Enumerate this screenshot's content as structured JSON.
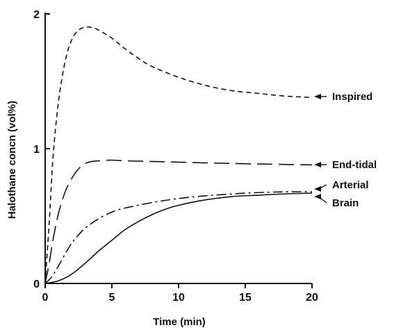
{
  "chart_data": {
    "type": "line",
    "title": "",
    "xlabel": "Time (min)",
    "ylabel": "Halothane concn (vol%)",
    "xlim": [
      0,
      20
    ],
    "ylim": [
      0,
      2
    ],
    "x_ticks": [
      "0",
      "5",
      "10",
      "15",
      "20"
    ],
    "y_ticks": [
      "0",
      "1",
      "2"
    ],
    "grid": false,
    "series": [
      {
        "name": "Inspired",
        "style": "short-dash",
        "x": [
          0,
          0.3,
          0.6,
          1,
          1.5,
          2,
          2.5,
          3,
          3.5,
          4,
          5,
          6,
          7,
          8,
          10,
          12,
          14,
          16,
          18,
          20
        ],
        "values": [
          0,
          0.45,
          0.95,
          1.35,
          1.65,
          1.81,
          1.88,
          1.9,
          1.9,
          1.88,
          1.82,
          1.74,
          1.67,
          1.61,
          1.53,
          1.47,
          1.43,
          1.41,
          1.39,
          1.38
        ]
      },
      {
        "name": "End-tidal",
        "style": "long-dash",
        "x": [
          0,
          0.3,
          0.6,
          1,
          1.5,
          2,
          2.5,
          3,
          3.5,
          4,
          5,
          6,
          8,
          10,
          14,
          20
        ],
        "values": [
          0,
          0.15,
          0.33,
          0.52,
          0.68,
          0.78,
          0.85,
          0.89,
          0.905,
          0.91,
          0.915,
          0.91,
          0.905,
          0.9,
          0.89,
          0.88
        ]
      },
      {
        "name": "Arterial",
        "style": "dash-dot",
        "x": [
          0,
          0.5,
          1,
          1.5,
          2,
          2.5,
          3,
          4,
          5,
          6,
          8,
          10,
          12,
          15,
          18,
          20
        ],
        "values": [
          0,
          0.05,
          0.13,
          0.22,
          0.3,
          0.36,
          0.41,
          0.48,
          0.53,
          0.56,
          0.6,
          0.63,
          0.65,
          0.67,
          0.68,
          0.68
        ]
      },
      {
        "name": "Brain",
        "style": "solid",
        "x": [
          0,
          1,
          2,
          3,
          4,
          5,
          6,
          7,
          8,
          9,
          10,
          12,
          14,
          16,
          18,
          20
        ],
        "values": [
          0,
          0.02,
          0.07,
          0.15,
          0.24,
          0.32,
          0.4,
          0.46,
          0.51,
          0.55,
          0.58,
          0.62,
          0.645,
          0.655,
          0.665,
          0.67
        ]
      }
    ]
  }
}
